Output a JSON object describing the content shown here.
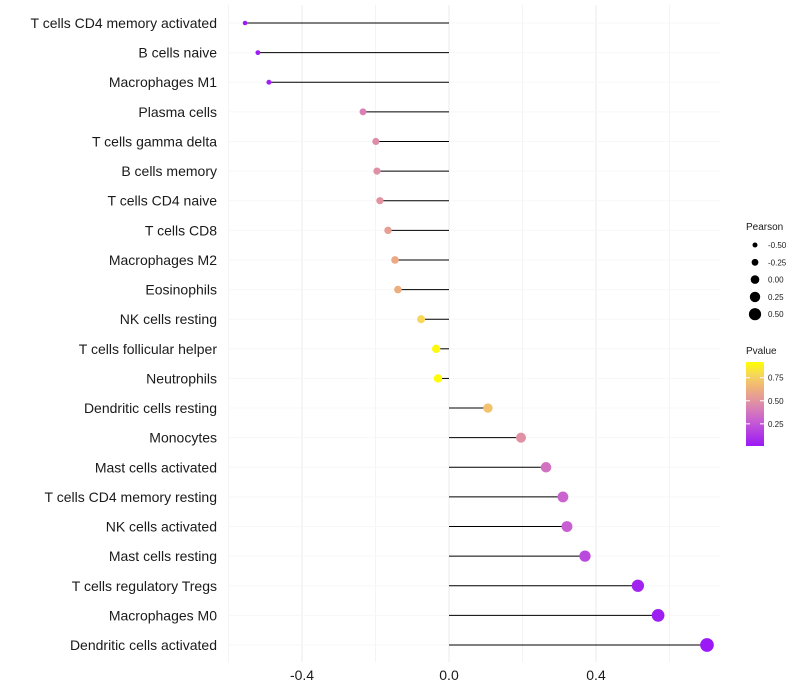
{
  "chart_data": {
    "type": "lollipop",
    "xlim": [
      -0.6,
      0.73
    ],
    "xticks": [
      -0.4,
      0.0,
      0.4
    ],
    "xtick_labels": [
      "-0.4",
      "0.0",
      "0.4"
    ],
    "grid": true,
    "categories": [
      "T cells CD4 memory activated",
      "B cells naive",
      "Macrophages M1",
      "Plasma cells",
      "T cells gamma delta",
      "B cells memory",
      "T cells CD4 naive",
      "T cells CD8",
      "Macrophages M2",
      "Eosinophils",
      "NK cells resting",
      "T cells follicular helper",
      "Neutrophils",
      "Dendritic cells resting",
      "Monocytes",
      "Mast cells activated",
      "T cells CD4 memory resting",
      "NK cells activated",
      "Mast cells resting",
      "T cells regulatory  Tregs",
      "Macrophages M0",
      "Dendritic cells activated"
    ],
    "pearson": [
      -0.555,
      -0.52,
      -0.49,
      -0.234,
      -0.199,
      -0.196,
      -0.188,
      -0.166,
      -0.147,
      -0.139,
      -0.076,
      -0.035,
      -0.03,
      0.106,
      0.196,
      0.264,
      0.31,
      0.321,
      0.37,
      0.514,
      0.569,
      0.702
    ],
    "pvalue": [
      0.02,
      0.03,
      0.05,
      0.42,
      0.47,
      0.48,
      0.5,
      0.55,
      0.6,
      0.62,
      0.78,
      0.9,
      0.91,
      0.7,
      0.49,
      0.36,
      0.3,
      0.28,
      0.2,
      0.05,
      0.03,
      0.01
    ],
    "legend": {
      "size_title": "Pearson",
      "size_values": [
        -0.5,
        -0.25,
        0.0,
        0.25,
        0.5
      ],
      "size_labels": [
        "-0.50",
        "-0.25",
        "0.00",
        "0.25",
        "0.50"
      ],
      "color_title": "Pvalue",
      "color_range": [
        0.01,
        0.92
      ],
      "color_ticks": [
        0.75,
        0.5,
        0.25
      ],
      "color_labels": [
        "0.75",
        "0.50",
        "0.25"
      ],
      "placement": "right"
    },
    "colors": {
      "low": "#9b19f5",
      "mid": "#d98bb0",
      "high": "#ffff00"
    }
  }
}
